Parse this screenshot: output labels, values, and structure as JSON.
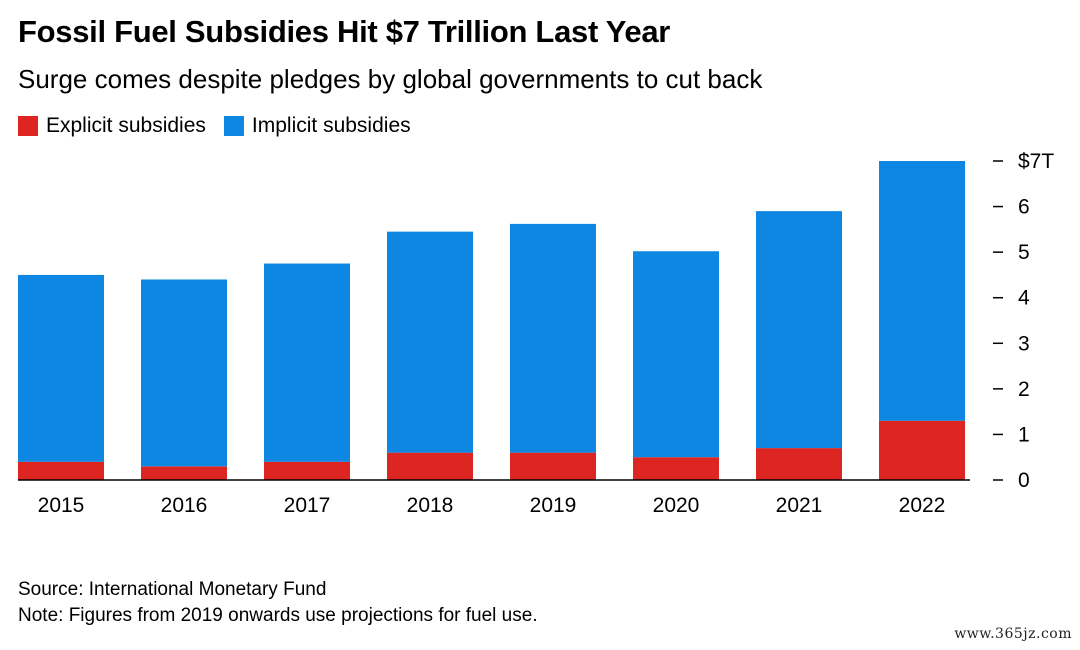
{
  "title": "Fossil Fuel Subsidies Hit $7 Trillion Last Year",
  "subtitle": "Surge comes despite pledges by global governments to cut back",
  "colors": {
    "explicit": "#dd2522",
    "implicit": "#0d87e1",
    "axis": "#000000"
  },
  "chart_data": {
    "type": "bar",
    "stacked": true,
    "categories": [
      "2015",
      "2016",
      "2017",
      "2018",
      "2019",
      "2020",
      "2021",
      "2022"
    ],
    "series": [
      {
        "name": "Explicit subsidies",
        "values": [
          0.4,
          0.3,
          0.4,
          0.6,
          0.6,
          0.5,
          0.7,
          1.3
        ]
      },
      {
        "name": "Implicit subsidies",
        "values": [
          4.1,
          4.1,
          4.35,
          4.85,
          5.02,
          4.52,
          5.2,
          5.7
        ]
      }
    ],
    "ylim": [
      0,
      7
    ],
    "yticks": [
      {
        "value": 7,
        "label": "$7T"
      },
      {
        "value": 6,
        "label": "6"
      },
      {
        "value": 5,
        "label": "5"
      },
      {
        "value": 4,
        "label": "4"
      },
      {
        "value": 3,
        "label": "3"
      },
      {
        "value": 2,
        "label": "2"
      },
      {
        "value": 1,
        "label": "1"
      },
      {
        "value": 0,
        "label": "0"
      }
    ],
    "yaxis_position": "right",
    "grid": false,
    "legend_position": "top-left"
  },
  "footer": {
    "source": "Source: International Monetary Fund",
    "note": "Note: Figures from 2019 onwards use projections for fuel use."
  },
  "watermark": "www.365jz.com"
}
